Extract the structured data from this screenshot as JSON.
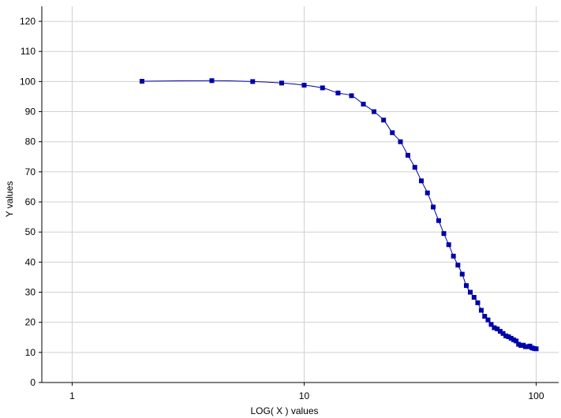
{
  "colors": {
    "series": "#0000aa",
    "grid": "#d0d0d0",
    "axis": "#000000",
    "background": "#ffffff"
  },
  "chart_data": {
    "type": "scatter",
    "title": "",
    "xlabel": "LOG( X ) values",
    "ylabel": "Y values",
    "x_scale": "log",
    "xlim": [
      0.74,
      125
    ],
    "ylim": [
      0,
      125
    ],
    "grid": true,
    "legend": "none",
    "x_ticks": [
      1,
      10,
      100
    ],
    "x_tick_labels": [
      "1",
      "10",
      "100"
    ],
    "y_ticks": [
      0,
      10,
      20,
      30,
      40,
      50,
      60,
      70,
      80,
      90,
      100,
      110,
      120
    ],
    "y_tick_labels": [
      "0",
      "10",
      "20",
      "30",
      "40",
      "50",
      "60",
      "70",
      "80",
      "90",
      "100",
      "110",
      "120"
    ],
    "series": [
      {
        "marker": "square",
        "line": "smooth",
        "x": [
          2,
          4,
          6,
          8,
          10,
          12,
          14,
          16,
          18,
          20,
          22,
          24,
          26,
          28,
          30,
          32,
          34,
          36,
          38,
          40,
          42,
          44,
          46,
          48,
          50,
          52,
          54,
          56,
          58,
          60,
          62,
          64,
          66,
          68,
          70,
          72,
          74,
          76,
          78,
          80,
          82,
          84,
          86,
          88,
          90,
          92,
          94,
          96,
          98,
          100
        ],
        "y": [
          100.1,
          100.3,
          100.0,
          99.5,
          98.8,
          97.9,
          96.2,
          95.3,
          92.5,
          90.0,
          87.2,
          83.0,
          80.0,
          75.5,
          71.5,
          67.0,
          63.0,
          58.3,
          53.8,
          49.5,
          45.8,
          42.0,
          39.0,
          36.0,
          32.2,
          30.0,
          28.3,
          26.5,
          24.0,
          22.0,
          20.8,
          19.3,
          18.2,
          17.8,
          17.0,
          16.3,
          15.5,
          15.2,
          14.7,
          14.2,
          13.8,
          12.7,
          12.3,
          12.4,
          11.9,
          11.9,
          12.1,
          11.5,
          11.3,
          11.2
        ]
      }
    ]
  }
}
